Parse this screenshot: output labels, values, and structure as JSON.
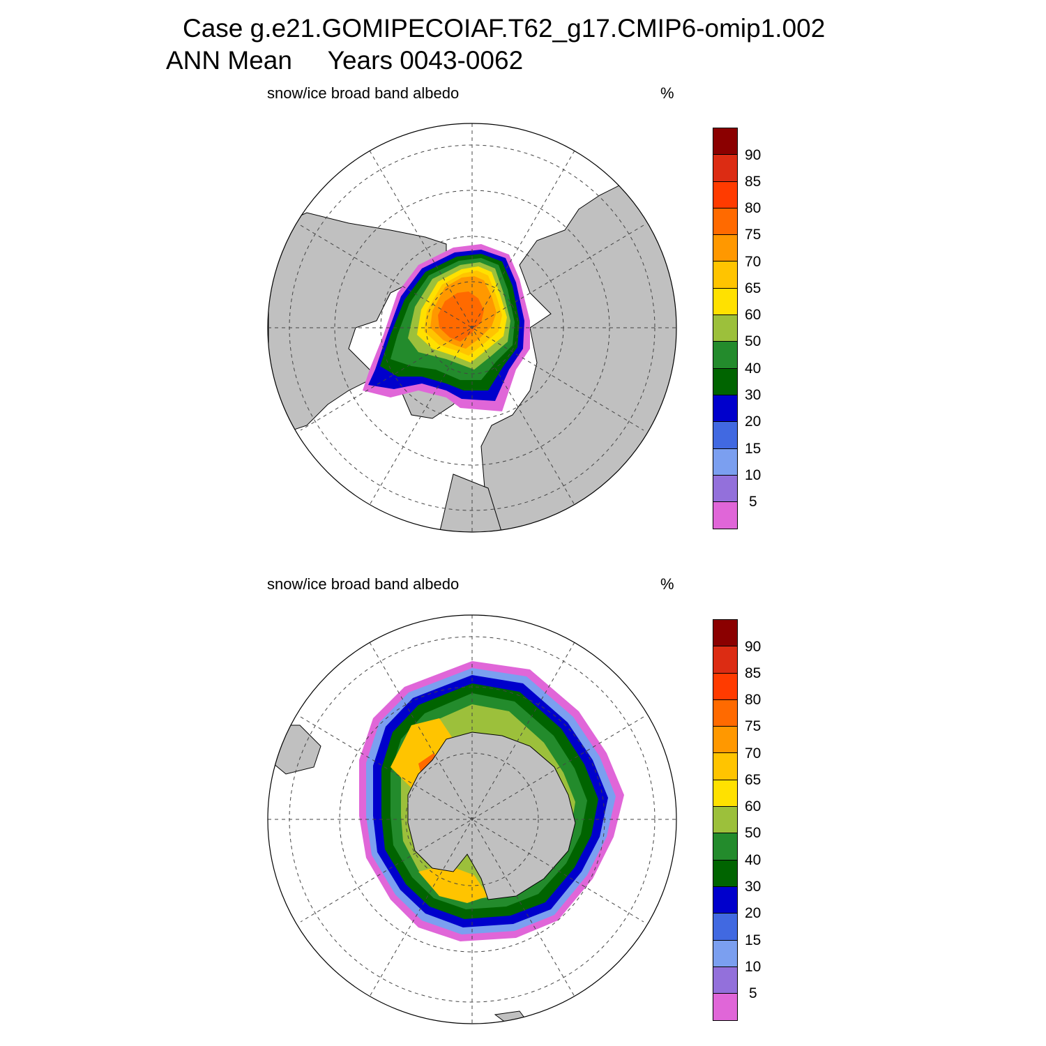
{
  "figure": {
    "title_line1": "Case g.e21.GOMIPECOIAF.T62_g17.CMIP6-omip1.002",
    "title_line2": "ANN Mean     Years 0043-0062"
  },
  "panels": [
    {
      "id": "north",
      "variable_label": "snow/ice broad band albedo",
      "units_label": "%"
    },
    {
      "id": "south",
      "variable_label": "snow/ice broad band albedo",
      "units_label": "%"
    }
  ],
  "colorbar": {
    "tick_labels": [
      "90",
      "85",
      "80",
      "75",
      "70",
      "65",
      "60",
      "50",
      "40",
      "30",
      "20",
      "15",
      "10",
      "5"
    ],
    "colors_top_to_bottom": [
      "#8b0000",
      "#dc2c13",
      "#ff3b00",
      "#ff6a00",
      "#ff9800",
      "#ffc400",
      "#ffe100",
      "#9cc03b",
      "#238b2c",
      "#006400",
      "#0000cc",
      "#4169e1",
      "#7b9ff0",
      "#9370db",
      "#e066d8"
    ]
  },
  "colors": {
    "land": "#c0c0c0",
    "ocean": "#ffffff",
    "grid": "#444444"
  }
}
